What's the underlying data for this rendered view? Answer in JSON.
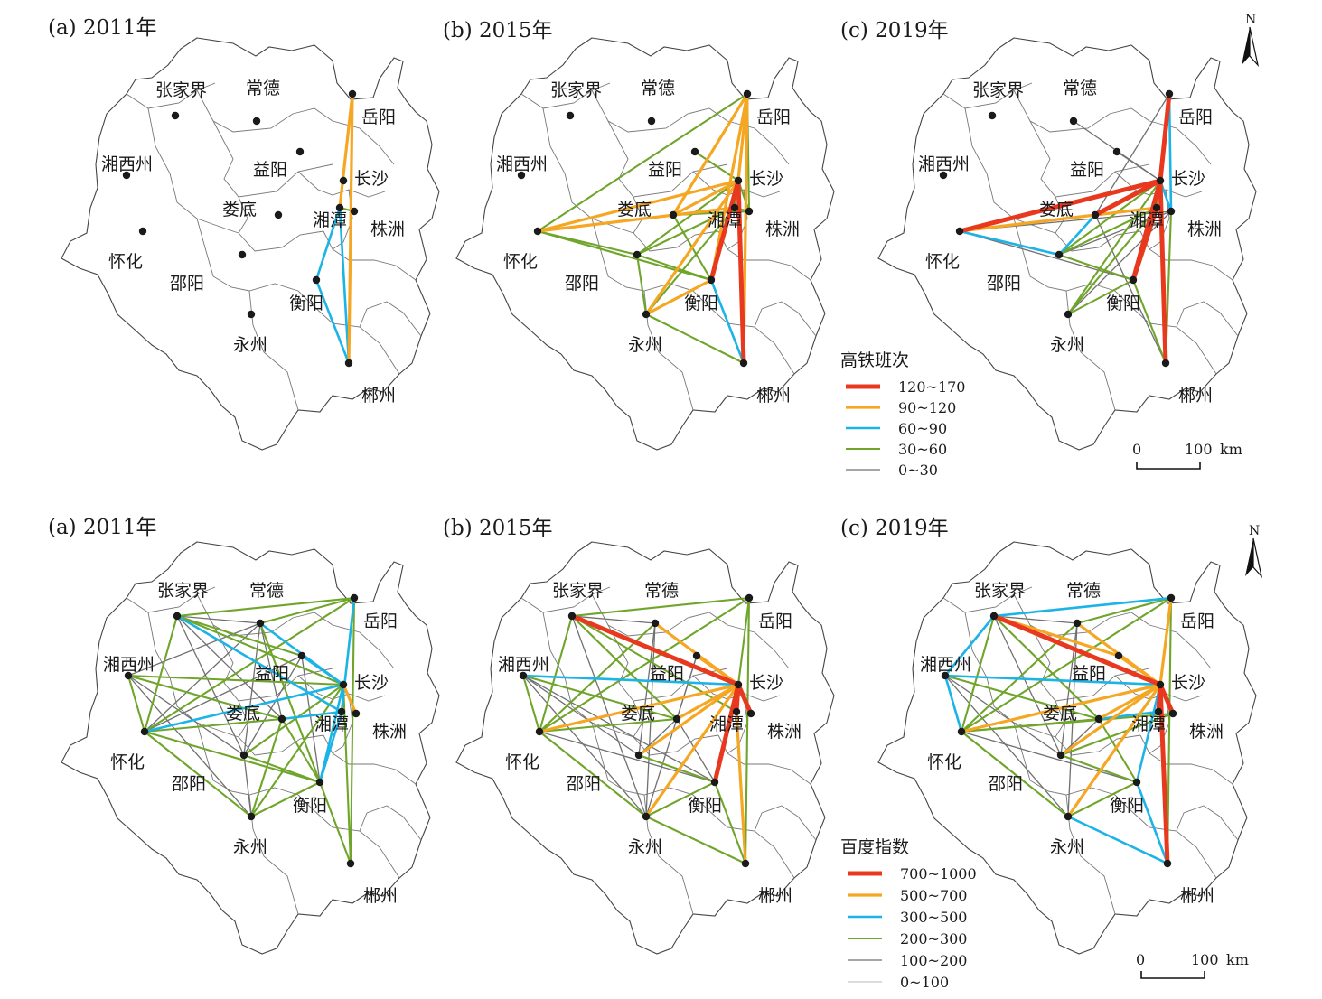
{
  "city_names": {
    "zjj": "张家界",
    "cd": "常德",
    "yy": "岳阳",
    "xx": "湘西州",
    "yiy": "益阳",
    "cs": "长沙",
    "ld": "娄底",
    "xt": "湘潭",
    "zz": "株洲",
    "hh": "怀化",
    "sy": "邵阳",
    "hy": "衡阳",
    "yz": "永州",
    "cz": "郴州"
  },
  "panels": [
    {
      "title": "(a) 2011年",
      "links": [
        [
          "yy",
          "cz",
          3
        ],
        [
          "yy",
          "xt",
          3
        ],
        [
          "xt",
          "hy",
          2
        ],
        [
          "xt",
          "cz",
          2
        ],
        [
          "hy",
          "cz",
          2
        ],
        [
          "xt",
          "zz",
          1
        ]
      ]
    },
    {
      "title": "(b) 2015年",
      "links": [
        [
          "cs",
          "cz",
          4
        ],
        [
          "cs",
          "hy",
          4
        ],
        [
          "yy",
          "cs",
          3
        ],
        [
          "yy",
          "hy",
          3
        ],
        [
          "hy",
          "cz",
          2
        ],
        [
          "hh",
          "cs",
          3
        ],
        [
          "ld",
          "cs",
          3
        ],
        [
          "yz",
          "cs",
          3
        ],
        [
          "yz",
          "hy",
          3
        ],
        [
          "yy",
          "ld",
          3
        ],
        [
          "yy",
          "cz",
          3
        ],
        [
          "hh",
          "xt",
          3
        ],
        [
          "hh",
          "yy",
          1
        ],
        [
          "hh",
          "ld",
          1
        ],
        [
          "hh",
          "hy",
          1
        ],
        [
          "hh",
          "sy",
          1
        ],
        [
          "ld",
          "xt",
          1
        ],
        [
          "ld",
          "zz",
          1
        ],
        [
          "ld",
          "hy",
          1
        ],
        [
          "sy",
          "cs",
          1
        ],
        [
          "sy",
          "xt",
          1
        ],
        [
          "sy",
          "hy",
          1
        ],
        [
          "yz",
          "xt",
          1
        ],
        [
          "yz",
          "sy",
          1
        ],
        [
          "yiy",
          "cs",
          1
        ],
        [
          "xt",
          "zz",
          1
        ],
        [
          "cs",
          "zz",
          1
        ],
        [
          "yy",
          "xt",
          1
        ],
        [
          "yy",
          "zz",
          1
        ],
        [
          "yz",
          "cz",
          1
        ]
      ]
    },
    {
      "title": "(c) 2019年",
      "links": [
        [
          "hh",
          "cs",
          4
        ],
        [
          "ld",
          "cs",
          4
        ],
        [
          "cs",
          "cz",
          4
        ],
        [
          "cs",
          "hy",
          4
        ],
        [
          "xt",
          "hy",
          4
        ],
        [
          "yy",
          "cs",
          4
        ],
        [
          "hh",
          "ld",
          3
        ],
        [
          "ld",
          "xt",
          3
        ],
        [
          "hh",
          "sy",
          2
        ],
        [
          "sy",
          "ld",
          2
        ],
        [
          "yy",
          "zz",
          2
        ],
        [
          "cs",
          "zz",
          2
        ],
        [
          "hh",
          "xt",
          2
        ],
        [
          "sy",
          "cs",
          1
        ],
        [
          "sy",
          "xt",
          1
        ],
        [
          "yz",
          "cs",
          1
        ],
        [
          "yz",
          "xt",
          1
        ],
        [
          "yz",
          "hy",
          1
        ],
        [
          "hy",
          "cz",
          1
        ],
        [
          "zz",
          "cz",
          1
        ],
        [
          "yy",
          "xt",
          1
        ],
        [
          "sy",
          "hy",
          1
        ],
        [
          "cd",
          "cs",
          0
        ],
        [
          "yiy",
          "cs",
          0
        ],
        [
          "hh",
          "hy",
          0
        ],
        [
          "ld",
          "cz",
          0
        ],
        [
          "yy",
          "ld",
          0
        ],
        [
          "yz",
          "zz",
          0
        ],
        [
          "sy",
          "zz",
          0
        ],
        [
          "hh",
          "zz",
          0
        ]
      ]
    },
    {
      "title": "(a) 2011年",
      "links": [
        [
          "zjj",
          "xt",
          2
        ],
        [
          "cd",
          "cs",
          2
        ],
        [
          "hh",
          "cs",
          2
        ],
        [
          "yy",
          "xt",
          2
        ],
        [
          "cs",
          "hy",
          2
        ],
        [
          "yiy",
          "cs",
          2
        ],
        [
          "cs",
          "zz",
          3
        ],
        [
          "ld",
          "xt",
          2
        ],
        [
          "hy",
          "xt",
          2
        ],
        [
          "zjj",
          "cs",
          1
        ],
        [
          "zjj",
          "yy",
          1
        ],
        [
          "zjj",
          "hh",
          1
        ],
        [
          "zjj",
          "yiy",
          1
        ],
        [
          "xx",
          "cs",
          1
        ],
        [
          "xx",
          "hh",
          1
        ],
        [
          "xx",
          "ld",
          1
        ],
        [
          "hh",
          "yy",
          1
        ],
        [
          "hh",
          "ld",
          1
        ],
        [
          "hh",
          "hy",
          1
        ],
        [
          "hh",
          "yz",
          1
        ],
        [
          "sy",
          "cs",
          1
        ],
        [
          "sy",
          "hy",
          1
        ],
        [
          "yz",
          "hy",
          1
        ],
        [
          "yz",
          "cs",
          1
        ],
        [
          "yy",
          "cz",
          1
        ],
        [
          "cs",
          "cz",
          1
        ],
        [
          "hy",
          "cz",
          1
        ],
        [
          "cd",
          "yy",
          1
        ],
        [
          "cd",
          "hy",
          1
        ],
        [
          "ld",
          "hy",
          1
        ],
        [
          "ld",
          "yz",
          1
        ],
        [
          "zjj",
          "cd",
          0
        ],
        [
          "xx",
          "cd",
          0
        ],
        [
          "xx",
          "sy",
          0
        ],
        [
          "xx",
          "yz",
          0
        ],
        [
          "cd",
          "sy",
          0
        ],
        [
          "yiy",
          "sy",
          0
        ],
        [
          "zjj",
          "sy",
          0
        ],
        [
          "zjj",
          "ld",
          0
        ],
        [
          "yiy",
          "hh",
          0
        ],
        [
          "cd",
          "hh",
          0
        ],
        [
          "yiy",
          "hy",
          0
        ],
        [
          "sy",
          "yz",
          0
        ],
        [
          "cd",
          "ld",
          0
        ]
      ]
    },
    {
      "title": "(b) 2015年",
      "links": [
        [
          "zjj",
          "cs",
          4
        ],
        [
          "cs",
          "zz",
          4
        ],
        [
          "cs",
          "hy",
          4
        ],
        [
          "cs",
          "xt",
          4
        ],
        [
          "hh",
          "cs",
          3
        ],
        [
          "cd",
          "cs",
          3
        ],
        [
          "sy",
          "cs",
          3
        ],
        [
          "yz",
          "cs",
          3
        ],
        [
          "ld",
          "cs",
          3
        ],
        [
          "xt",
          "cz",
          3
        ],
        [
          "yiy",
          "cs",
          3
        ],
        [
          "xx",
          "cs",
          2
        ],
        [
          "zjj",
          "yy",
          1
        ],
        [
          "zjj",
          "hh",
          1
        ],
        [
          "zjj",
          "ld",
          1
        ],
        [
          "zjj",
          "xt",
          1
        ],
        [
          "hh",
          "yy",
          1
        ],
        [
          "hh",
          "ld",
          1
        ],
        [
          "hh",
          "yz",
          1
        ],
        [
          "yy",
          "cs",
          1
        ],
        [
          "yy",
          "cz",
          1
        ],
        [
          "hy",
          "cz",
          1
        ],
        [
          "sy",
          "hy",
          1
        ],
        [
          "yz",
          "hy",
          1
        ],
        [
          "yz",
          "cz",
          1
        ],
        [
          "xx",
          "hh",
          1
        ],
        [
          "xx",
          "ld",
          1
        ],
        [
          "cd",
          "hh",
          1
        ],
        [
          "xx",
          "yz",
          0
        ],
        [
          "xx",
          "sy",
          0
        ],
        [
          "zjj",
          "cd",
          0
        ],
        [
          "cd",
          "sy",
          0
        ],
        [
          "yiy",
          "ld",
          0
        ],
        [
          "yiy",
          "yz",
          0
        ],
        [
          "sy",
          "ld",
          0
        ],
        [
          "zjj",
          "yz",
          0
        ],
        [
          "xx",
          "hy",
          0
        ],
        [
          "hh",
          "hy",
          0
        ],
        [
          "cd",
          "yz",
          0
        ],
        [
          "ld",
          "hy",
          0
        ]
      ]
    },
    {
      "title": "(c) 2019年",
      "links": [
        [
          "zjj",
          "cs",
          4
        ],
        [
          "cs",
          "zz",
          4
        ],
        [
          "cs",
          "cz",
          4
        ],
        [
          "xt",
          "cs",
          4
        ],
        [
          "hh",
          "cs",
          3
        ],
        [
          "cd",
          "cs",
          3
        ],
        [
          "ld",
          "cs",
          3
        ],
        [
          "yy",
          "cs",
          3
        ],
        [
          "sy",
          "cs",
          3
        ],
        [
          "yiy",
          "cs",
          3
        ],
        [
          "yz",
          "cs",
          3
        ],
        [
          "zjj",
          "yiy",
          3
        ],
        [
          "xx",
          "cs",
          2
        ],
        [
          "xx",
          "zjj",
          2
        ],
        [
          "xx",
          "hh",
          2
        ],
        [
          "zjj",
          "yy",
          2
        ],
        [
          "hy",
          "cz",
          2
        ],
        [
          "ld",
          "xt",
          2
        ],
        [
          "yz",
          "cz",
          2
        ],
        [
          "hy",
          "cs",
          2
        ],
        [
          "zjj",
          "hh",
          1
        ],
        [
          "zjj",
          "ld",
          1
        ],
        [
          "hh",
          "yy",
          1
        ],
        [
          "hh",
          "ld",
          1
        ],
        [
          "hh",
          "yz",
          1
        ],
        [
          "hh",
          "zz",
          1
        ],
        [
          "yy",
          "cz",
          1
        ],
        [
          "sy",
          "hy",
          1
        ],
        [
          "yz",
          "hy",
          1
        ],
        [
          "cd",
          "hh",
          1
        ],
        [
          "ld",
          "hy",
          1
        ],
        [
          "sy",
          "zz",
          1
        ],
        [
          "cd",
          "yy",
          1
        ],
        [
          "xx",
          "ld",
          1
        ],
        [
          "xx",
          "yz",
          0
        ],
        [
          "xx",
          "sy",
          0
        ],
        [
          "zjj",
          "cd",
          0
        ],
        [
          "cd",
          "sy",
          0
        ],
        [
          "sy",
          "ld",
          0
        ],
        [
          "hh",
          "hy",
          0
        ],
        [
          "cd",
          "yz",
          0
        ],
        [
          "zjj",
          "sy",
          0
        ]
      ]
    }
  ],
  "legends": [
    {
      "title": "高铁班次",
      "items": [
        {
          "label": "120~170",
          "class_index": 4
        },
        {
          "label": "90~120",
          "class_index": 3
        },
        {
          "label": "60~90",
          "class_index": 2
        },
        {
          "label": "30~60",
          "class_index": 1
        },
        {
          "label": "0~30",
          "class_index": 0
        }
      ]
    },
    {
      "title": "百度指数",
      "items": [
        {
          "label": "700~1000",
          "class_index": 4
        },
        {
          "label": "500~700",
          "class_index": 3
        },
        {
          "label": "300~500",
          "class_index": 2
        },
        {
          "label": "200~300",
          "class_index": 1
        },
        {
          "label": "100~200",
          "class_index": 0
        },
        {
          "label": "0~100",
          "class_index": -1
        }
      ]
    }
  ],
  "line_colors": {
    "c4": "#e8391f",
    "c3": "#f5a623",
    "c2": "#1cb3e6",
    "c1": "#6fa52a",
    "c0": "#707070",
    "cm1": "#b8b8b8"
  },
  "north_label": "N",
  "scale_bar": {
    "zero": "0",
    "distance": "100",
    "unit": "km"
  }
}
